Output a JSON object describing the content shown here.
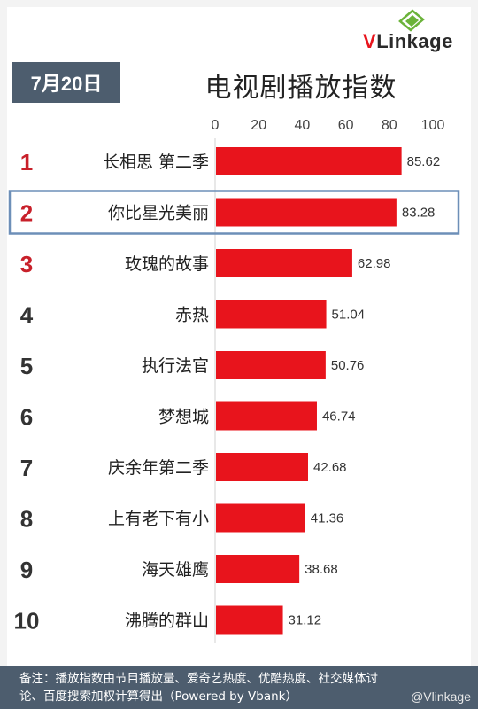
{
  "brand": {
    "v": "V",
    "rest": "Linkage"
  },
  "date_label": "7月20日",
  "chart_data": {
    "type": "bar",
    "orientation": "horizontal",
    "title": "电视剧播放指数",
    "categories": [
      "长相思 第二季",
      "你比星光美丽",
      "玫瑰的故事",
      "赤热",
      "执行法官",
      "梦想城",
      "庆余年第二季",
      "上有老下有小",
      "海天雄鹰",
      "沸腾的群山"
    ],
    "ranks": [
      "1",
      "2",
      "3",
      "4",
      "5",
      "6",
      "7",
      "8",
      "9",
      "10"
    ],
    "values": [
      85.62,
      83.28,
      62.98,
      51.04,
      50.76,
      46.74,
      42.68,
      41.36,
      38.68,
      31.12
    ],
    "value_labels": [
      "85.62",
      "83.28",
      "62.98",
      "51.04",
      "50.76",
      "46.74",
      "42.68",
      "41.36",
      "38.68",
      "31.12"
    ],
    "xlim": [
      0,
      100
    ],
    "ticks": [
      "0",
      "20",
      "40",
      "60",
      "80",
      "100"
    ],
    "highlighted_index": 1,
    "grid": false,
    "colors": {
      "bar": "#e8141c",
      "top_rank": "#c8202a",
      "rank": "#333333",
      "highlight_box": "#6d8fb8"
    }
  },
  "footer": {
    "note_line1": "备注：播放指数由节目播放量、爱奇艺热度、优酷热度、社交媒体讨",
    "note_line2": "论、百度搜索加权计算得出（Powered by Vbank）"
  },
  "watermark": "@Vlinkage"
}
